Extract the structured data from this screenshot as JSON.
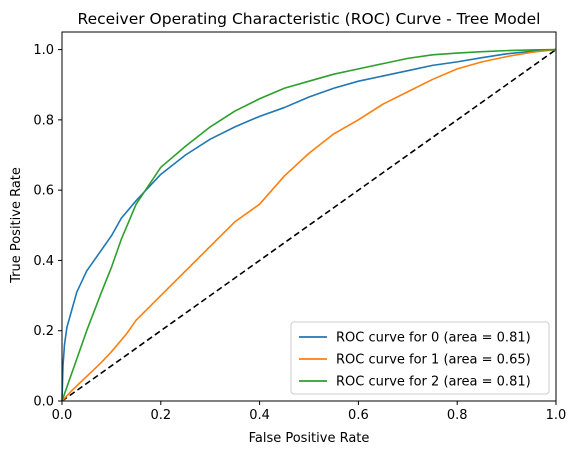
{
  "chart_data": {
    "type": "line",
    "title": "Receiver Operating Characteristic (ROC) Curve - Tree Model",
    "xlabel": "False Positive Rate",
    "ylabel": "True Positive Rate",
    "xlim": [
      0.0,
      1.0
    ],
    "ylim": [
      0.0,
      1.05
    ],
    "x_ticks": [
      "0.0",
      "0.2",
      "0.4",
      "0.6",
      "0.8",
      "1.0"
    ],
    "y_ticks": [
      "0.0",
      "0.2",
      "0.4",
      "0.6",
      "0.8",
      "1.0"
    ],
    "grid": false,
    "legend_position": "lower-right",
    "series": [
      {
        "name": "ROC curve for 0 (area = 0.81)",
        "color": "#1f77b4",
        "points": [
          [
            0,
            0
          ],
          [
            0.002,
            0.1
          ],
          [
            0.005,
            0.16
          ],
          [
            0.01,
            0.21
          ],
          [
            0.02,
            0.26
          ],
          [
            0.03,
            0.31
          ],
          [
            0.05,
            0.37
          ],
          [
            0.07,
            0.41
          ],
          [
            0.1,
            0.47
          ],
          [
            0.12,
            0.52
          ],
          [
            0.15,
            0.57
          ],
          [
            0.2,
            0.645
          ],
          [
            0.25,
            0.7
          ],
          [
            0.3,
            0.745
          ],
          [
            0.35,
            0.78
          ],
          [
            0.4,
            0.81
          ],
          [
            0.45,
            0.835
          ],
          [
            0.5,
            0.865
          ],
          [
            0.55,
            0.89
          ],
          [
            0.6,
            0.91
          ],
          [
            0.65,
            0.925
          ],
          [
            0.7,
            0.94
          ],
          [
            0.75,
            0.955
          ],
          [
            0.8,
            0.965
          ],
          [
            0.85,
            0.977
          ],
          [
            0.9,
            0.988
          ],
          [
            0.95,
            0.995
          ],
          [
            1.0,
            1.0
          ]
        ]
      },
      {
        "name": "ROC curve for 1 (area = 0.65)",
        "color": "#ff7f0e",
        "points": [
          [
            0,
            0
          ],
          [
            0.02,
            0.03
          ],
          [
            0.05,
            0.07
          ],
          [
            0.08,
            0.11
          ],
          [
            0.1,
            0.14
          ],
          [
            0.13,
            0.19
          ],
          [
            0.15,
            0.23
          ],
          [
            0.2,
            0.3
          ],
          [
            0.25,
            0.37
          ],
          [
            0.3,
            0.44
          ],
          [
            0.35,
            0.51
          ],
          [
            0.4,
            0.56
          ],
          [
            0.45,
            0.64
          ],
          [
            0.5,
            0.705
          ],
          [
            0.55,
            0.76
          ],
          [
            0.6,
            0.8
          ],
          [
            0.65,
            0.845
          ],
          [
            0.7,
            0.88
          ],
          [
            0.75,
            0.915
          ],
          [
            0.8,
            0.945
          ],
          [
            0.85,
            0.965
          ],
          [
            0.9,
            0.98
          ],
          [
            0.95,
            0.992
          ],
          [
            1.0,
            1.0
          ]
        ]
      },
      {
        "name": "ROC curve for 2 (area = 0.81)",
        "color": "#2ca02c",
        "points": [
          [
            0,
            0
          ],
          [
            0.01,
            0.04
          ],
          [
            0.03,
            0.12
          ],
          [
            0.05,
            0.2
          ],
          [
            0.08,
            0.31
          ],
          [
            0.1,
            0.38
          ],
          [
            0.12,
            0.46
          ],
          [
            0.15,
            0.56
          ],
          [
            0.2,
            0.665
          ],
          [
            0.25,
            0.725
          ],
          [
            0.3,
            0.78
          ],
          [
            0.35,
            0.825
          ],
          [
            0.4,
            0.86
          ],
          [
            0.45,
            0.89
          ],
          [
            0.5,
            0.91
          ],
          [
            0.55,
            0.93
          ],
          [
            0.6,
            0.945
          ],
          [
            0.65,
            0.96
          ],
          [
            0.7,
            0.975
          ],
          [
            0.75,
            0.985
          ],
          [
            0.8,
            0.99
          ],
          [
            0.85,
            0.994
          ],
          [
            0.9,
            0.997
          ],
          [
            0.95,
            0.999
          ],
          [
            1.0,
            1.0
          ]
        ]
      }
    ],
    "reference_line": {
      "points": [
        [
          0,
          0
        ],
        [
          1,
          1
        ]
      ],
      "color": "#000000",
      "style": "dashed"
    }
  }
}
